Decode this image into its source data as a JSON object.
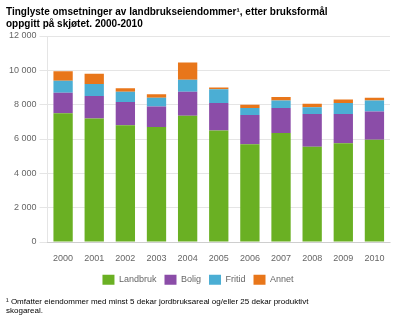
{
  "chart_data": {
    "type": "bar",
    "title": "Tinglyste omsetninger av landbrukseiendommer¹, etter bruksformål\noppgitt på skjøtet. 2000-2010",
    "categories": [
      "2000",
      "2001",
      "2002",
      "2003",
      "2004",
      "2005",
      "2006",
      "2007",
      "2008",
      "2009",
      "2010"
    ],
    "series": [
      {
        "name": "Landbruk",
        "color": "#6ab023",
        "values": [
          7500,
          7200,
          6800,
          6700,
          7350,
          6500,
          5700,
          6350,
          5550,
          5750,
          5950
        ]
      },
      {
        "name": "Bolig",
        "color": "#8b4da8",
        "values": [
          1200,
          1300,
          1350,
          1200,
          1400,
          1600,
          1700,
          1450,
          1900,
          1700,
          1650
        ]
      },
      {
        "name": "Fritid",
        "color": "#4baed4",
        "values": [
          700,
          700,
          600,
          500,
          700,
          800,
          400,
          450,
          400,
          650,
          650
        ]
      },
      {
        "name": "Annet",
        "color": "#e8761a",
        "values": [
          550,
          600,
          200,
          200,
          1000,
          100,
          200,
          200,
          200,
          200,
          150
        ]
      }
    ],
    "stacked": true,
    "ylim": [
      0,
      12000
    ],
    "yticks": [
      0,
      {
        "value": 2000,
        "label": "2 000"
      },
      {
        "value": 4000,
        "label": "4 000"
      },
      {
        "value": 6000,
        "label": "6 000"
      },
      {
        "value": 8000,
        "label": "8 000"
      },
      {
        "value": 10000,
        "label": "10 000"
      },
      {
        "value": 12000,
        "label": "12 000"
      }
    ],
    "grid": true,
    "legend": "bottom",
    "annotations": [
      "¹ Omfatter eiendommer med minst 5 dekar jordbruksareal og/eller 25 dekar produktivt\nskogareal."
    ]
  }
}
